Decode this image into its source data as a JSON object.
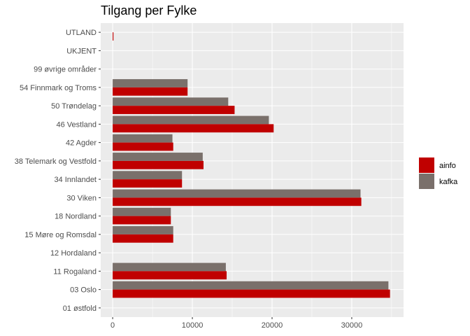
{
  "chart_data": {
    "type": "bar",
    "orientation": "horizontal",
    "title": "Tilgang per Fylke",
    "xlabel": "",
    "ylabel": "",
    "categories": [
      "UTLAND",
      "UKJENT",
      "99 øvrige områder",
      "54 Finnmark og Troms",
      "50 Trøndelag",
      "46 Vestland",
      "42 Agder",
      "38 Telemark og Vestfold",
      "34 Innlandet",
      "30 Viken",
      "18 Nordland",
      "15 Møre og Romsdal",
      "12 Hordaland",
      "11 Rogaland",
      "03 Oslo",
      "01 østfold"
    ],
    "series": [
      {
        "name": "ainfo",
        "color": "#c00000",
        "values": [
          100,
          0,
          0,
          9400,
          15300,
          20200,
          7600,
          11400,
          8700,
          31200,
          7300,
          7600,
          0,
          14300,
          34800,
          0
        ]
      },
      {
        "name": "kafka",
        "color": "#7a706b",
        "values": [
          0,
          0,
          0,
          9400,
          14500,
          19600,
          7500,
          11300,
          8700,
          31100,
          7300,
          7600,
          0,
          14200,
          34600,
          0
        ]
      }
    ],
    "xlim": [
      -1500,
      36500
    ],
    "xticks": [
      0,
      10000,
      20000,
      30000
    ],
    "grid": true,
    "legend_position": "right",
    "panel_background": "#ebebeb",
    "grid_color": "#ffffff"
  }
}
